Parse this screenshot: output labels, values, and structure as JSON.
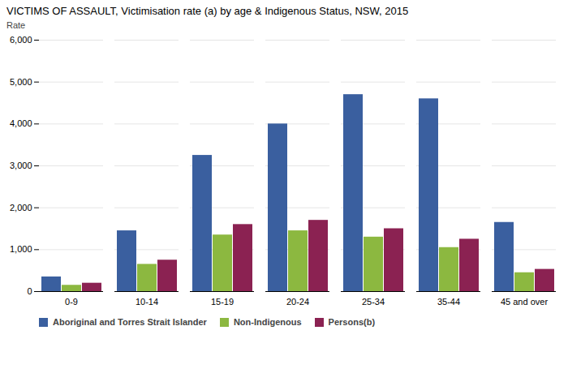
{
  "chart_data": {
    "type": "bar",
    "title": "VICTIMS OF ASSAULT, Victimisation rate (a) by age & Indigenous Status, NSW, 2015",
    "ylabel": "Rate",
    "categories": [
      "0-9",
      "10-14",
      "15-19",
      "20-24",
      "25-34",
      "35-44",
      "45 and over"
    ],
    "series": [
      {
        "name": "Aboriginal and Torres Strait Islander",
        "color": "#3A5F9F",
        "values": [
          350,
          1450,
          3250,
          4000,
          4700,
          4600,
          1650
        ]
      },
      {
        "name": "Non-Indigenous",
        "color": "#8CB840",
        "values": [
          150,
          650,
          1350,
          1450,
          1300,
          1050,
          450
        ]
      },
      {
        "name": "Persons(b)",
        "color": "#8B2252",
        "values": [
          200,
          750,
          1600,
          1700,
          1500,
          1250,
          530
        ]
      }
    ],
    "ylim": [
      0,
      6000
    ],
    "yticks": [
      0,
      {
        "value": 1000,
        "label": "1,000"
      },
      {
        "value": 2000,
        "label": "2,000"
      },
      {
        "value": 3000,
        "label": "3,000"
      },
      {
        "value": 4000,
        "label": "4,000"
      },
      {
        "value": 5000,
        "label": "5,000"
      },
      {
        "value": 6000,
        "label": "6,000"
      }
    ],
    "grid": true,
    "legend": "bottom"
  }
}
